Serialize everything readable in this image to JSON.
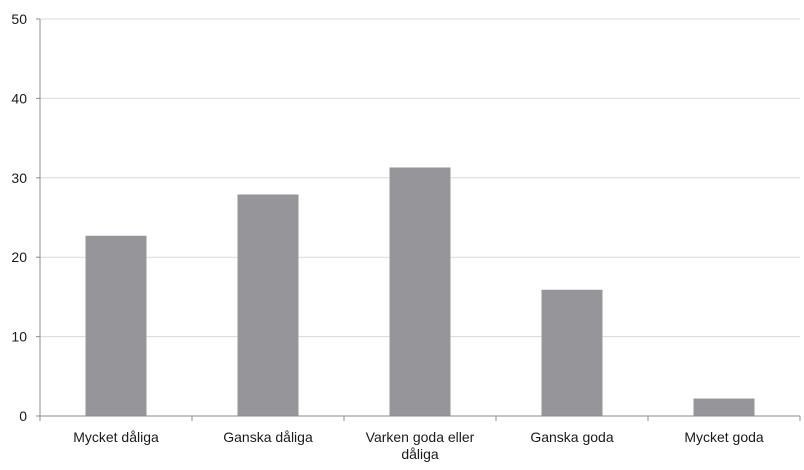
{
  "chart_data": {
    "type": "bar",
    "categories": [
      "Mycket dåliga",
      "Ganska dåliga",
      "Varken goda eller dåliga",
      "Ganska goda",
      "Mycket goda"
    ],
    "category_label_lines": [
      [
        "Mycket dåliga"
      ],
      [
        "Ganska dåliga"
      ],
      [
        "Varken goda eller",
        "dåliga"
      ],
      [
        "Ganska goda"
      ],
      [
        "Mycket goda"
      ]
    ],
    "values": [
      22.7,
      27.9,
      31.3,
      15.9,
      2.2
    ],
    "title": "",
    "xlabel": "",
    "ylabel": "",
    "ylim": [
      0,
      50
    ],
    "yticks": [
      "0",
      "10",
      "20",
      "30",
      "40",
      "50"
    ],
    "grid": true,
    "colors": {
      "bar": "#96969a",
      "grid": "#d9d9d9",
      "axis": "#8c8c8c"
    }
  }
}
